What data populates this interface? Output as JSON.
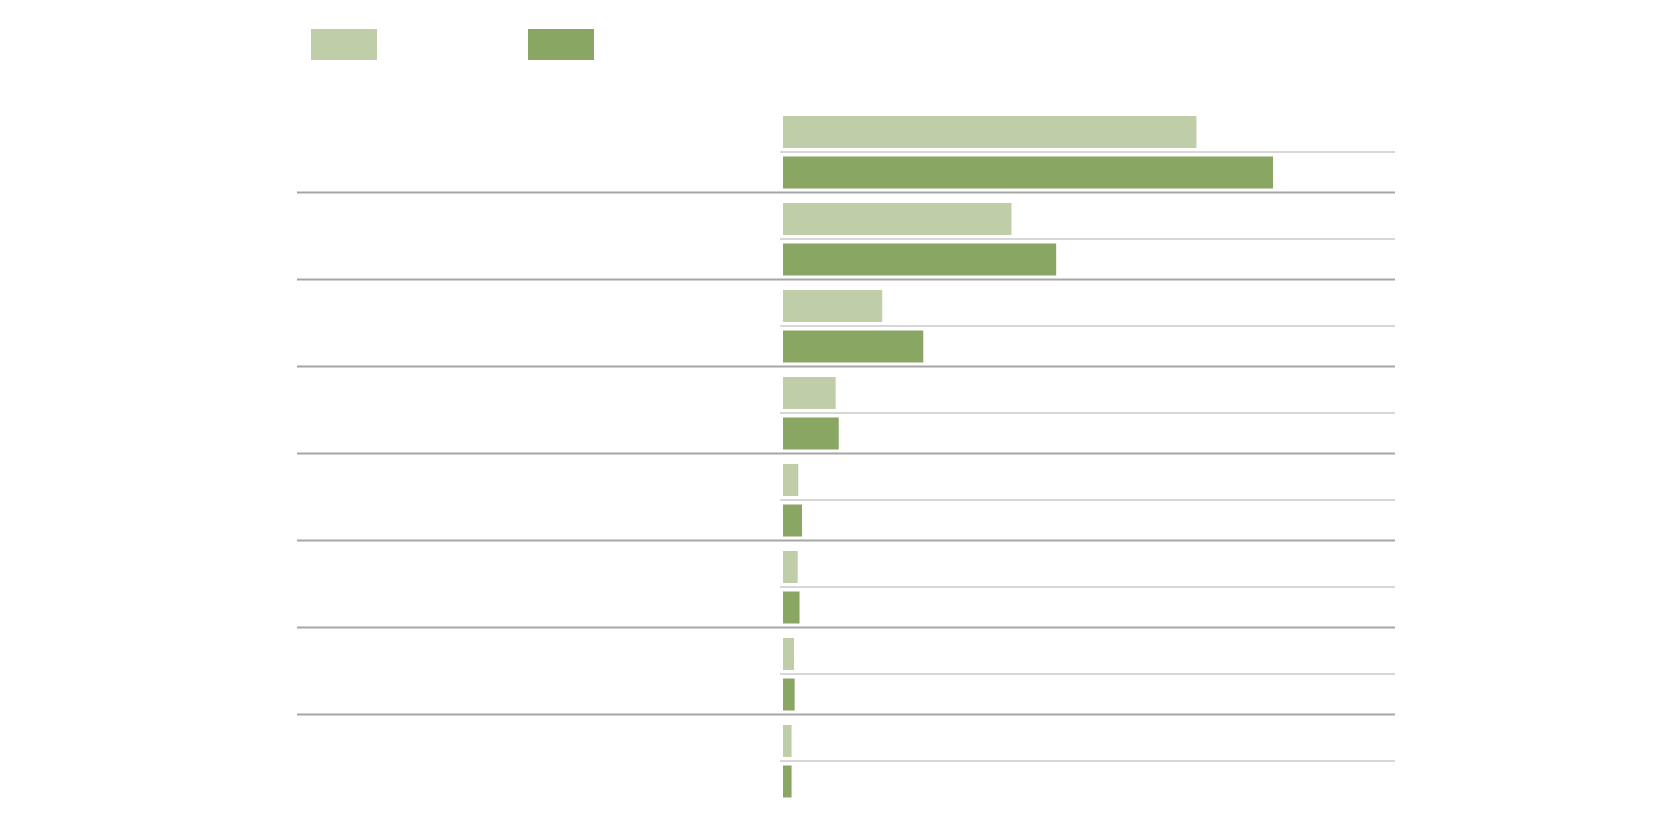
{
  "colors": {
    "background": "#ffffff",
    "series_a": "#bfcda9",
    "series_b": "#8aa663",
    "row_divider": "#a6a6a6",
    "pair_divider": "#bfbfbf"
  },
  "chart_data": {
    "type": "bar",
    "orientation": "horizontal",
    "title": "",
    "xlabel": "",
    "ylabel": "",
    "legend": "top-left",
    "grid": false,
    "xlim": [
      0,
      100
    ],
    "categories": [
      "",
      "",
      "",
      "",
      "",
      "",
      "",
      ""
    ],
    "series": [
      {
        "color": "#bfcda9",
        "values": [
          67.5,
          37.3,
          16.2,
          8.6,
          2.5,
          2.4,
          1.8,
          1.4
        ]
      },
      {
        "color": "#8aa663",
        "values": [
          80.0,
          44.6,
          22.9,
          9.1,
          3.1,
          2.7,
          1.9,
          1.4
        ]
      }
    ]
  }
}
